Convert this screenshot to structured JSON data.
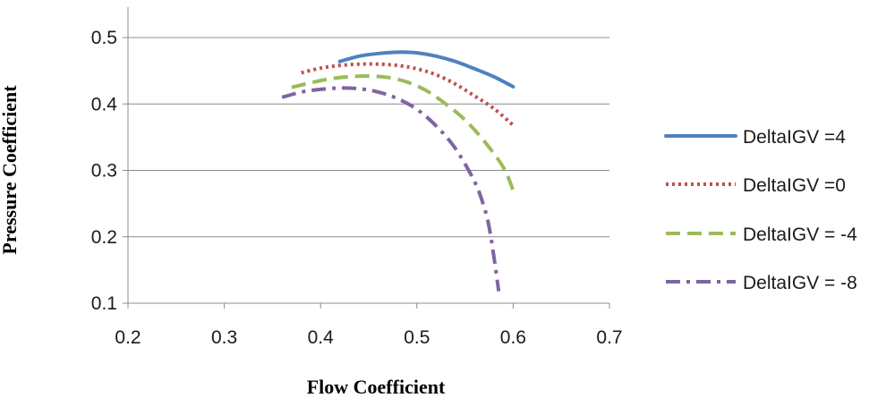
{
  "chart_data": {
    "type": "line",
    "title": "",
    "xlabel": "Flow Coefficient",
    "ylabel": "Pressure Coefficient",
    "xlim": [
      0.2,
      0.7
    ],
    "ylim": [
      0.1,
      0.5
    ],
    "xticks": [
      "0.2",
      "0.3",
      "0.4",
      "0.5",
      "0.6",
      "0.7"
    ],
    "yticks": [
      "0.1",
      "0.2",
      "0.3",
      "0.4",
      "0.5"
    ],
    "grid": "horizontal",
    "legend_position": "right",
    "series": [
      {
        "name": "DeltaIGV =4",
        "color": "#4f81bd",
        "style": "solid",
        "x": [
          0.42,
          0.44,
          0.46,
          0.48,
          0.5,
          0.52,
          0.54,
          0.56,
          0.58,
          0.6
        ],
        "y": [
          0.464,
          0.472,
          0.476,
          0.478,
          0.477,
          0.472,
          0.464,
          0.453,
          0.441,
          0.426
        ]
      },
      {
        "name": "DeltaIGV =0",
        "color": "#c0504d",
        "style": "dotted",
        "x": [
          0.38,
          0.4,
          0.42,
          0.44,
          0.46,
          0.48,
          0.5,
          0.52,
          0.54,
          0.56,
          0.58,
          0.6
        ],
        "y": [
          0.447,
          0.454,
          0.458,
          0.46,
          0.46,
          0.458,
          0.453,
          0.444,
          0.43,
          0.412,
          0.393,
          0.368
        ]
      },
      {
        "name": "DeltaIGV = -4",
        "color": "#9bbb59",
        "style": "dashed",
        "x": [
          0.37,
          0.39,
          0.41,
          0.43,
          0.45,
          0.47,
          0.49,
          0.51,
          0.53,
          0.55,
          0.57,
          0.59,
          0.6
        ],
        "y": [
          0.425,
          0.432,
          0.438,
          0.441,
          0.442,
          0.44,
          0.433,
          0.42,
          0.4,
          0.376,
          0.344,
          0.304,
          0.27
        ]
      },
      {
        "name": "DeltaIGV = -8",
        "color": "#8064a2",
        "style": "dashdot",
        "x": [
          0.36,
          0.38,
          0.4,
          0.42,
          0.44,
          0.46,
          0.48,
          0.5,
          0.52,
          0.54,
          0.56,
          0.57,
          0.575,
          0.58,
          0.585
        ],
        "y": [
          0.41,
          0.418,
          0.422,
          0.424,
          0.423,
          0.418,
          0.408,
          0.392,
          0.367,
          0.333,
          0.283,
          0.244,
          0.215,
          0.17,
          0.118
        ]
      }
    ]
  }
}
